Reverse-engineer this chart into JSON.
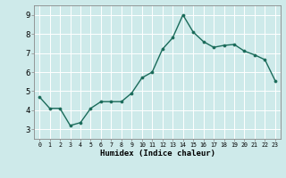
{
  "x": [
    0,
    1,
    2,
    3,
    4,
    5,
    6,
    7,
    8,
    9,
    10,
    11,
    12,
    13,
    14,
    15,
    16,
    17,
    18,
    19,
    20,
    21,
    22,
    23
  ],
  "y": [
    4.7,
    4.1,
    4.1,
    3.2,
    3.35,
    4.1,
    4.45,
    4.45,
    4.45,
    4.9,
    5.7,
    6.0,
    7.2,
    7.8,
    9.0,
    8.1,
    7.6,
    7.3,
    7.4,
    7.45,
    7.1,
    6.9,
    6.65,
    5.55
  ],
  "xlabel": "Humidex (Indice chaleur)",
  "ylim": [
    2.5,
    9.5
  ],
  "xlim": [
    -0.5,
    23.5
  ],
  "yticks": [
    3,
    4,
    5,
    6,
    7,
    8,
    9
  ],
  "xticks": [
    0,
    1,
    2,
    3,
    4,
    5,
    6,
    7,
    8,
    9,
    10,
    11,
    12,
    13,
    14,
    15,
    16,
    17,
    18,
    19,
    20,
    21,
    22,
    23
  ],
  "xtick_labels": [
    "0",
    "1",
    "2",
    "3",
    "4",
    "5",
    "6",
    "7",
    "8",
    "9",
    "10",
    "11",
    "12",
    "13",
    "14",
    "15",
    "16",
    "17",
    "18",
    "19",
    "20",
    "21",
    "22",
    "23"
  ],
  "line_color": "#1a6b5a",
  "marker_color": "#1a6b5a",
  "bg_color": "#ceeaea",
  "grid_color": "#ffffff",
  "spine_color": "#888888"
}
